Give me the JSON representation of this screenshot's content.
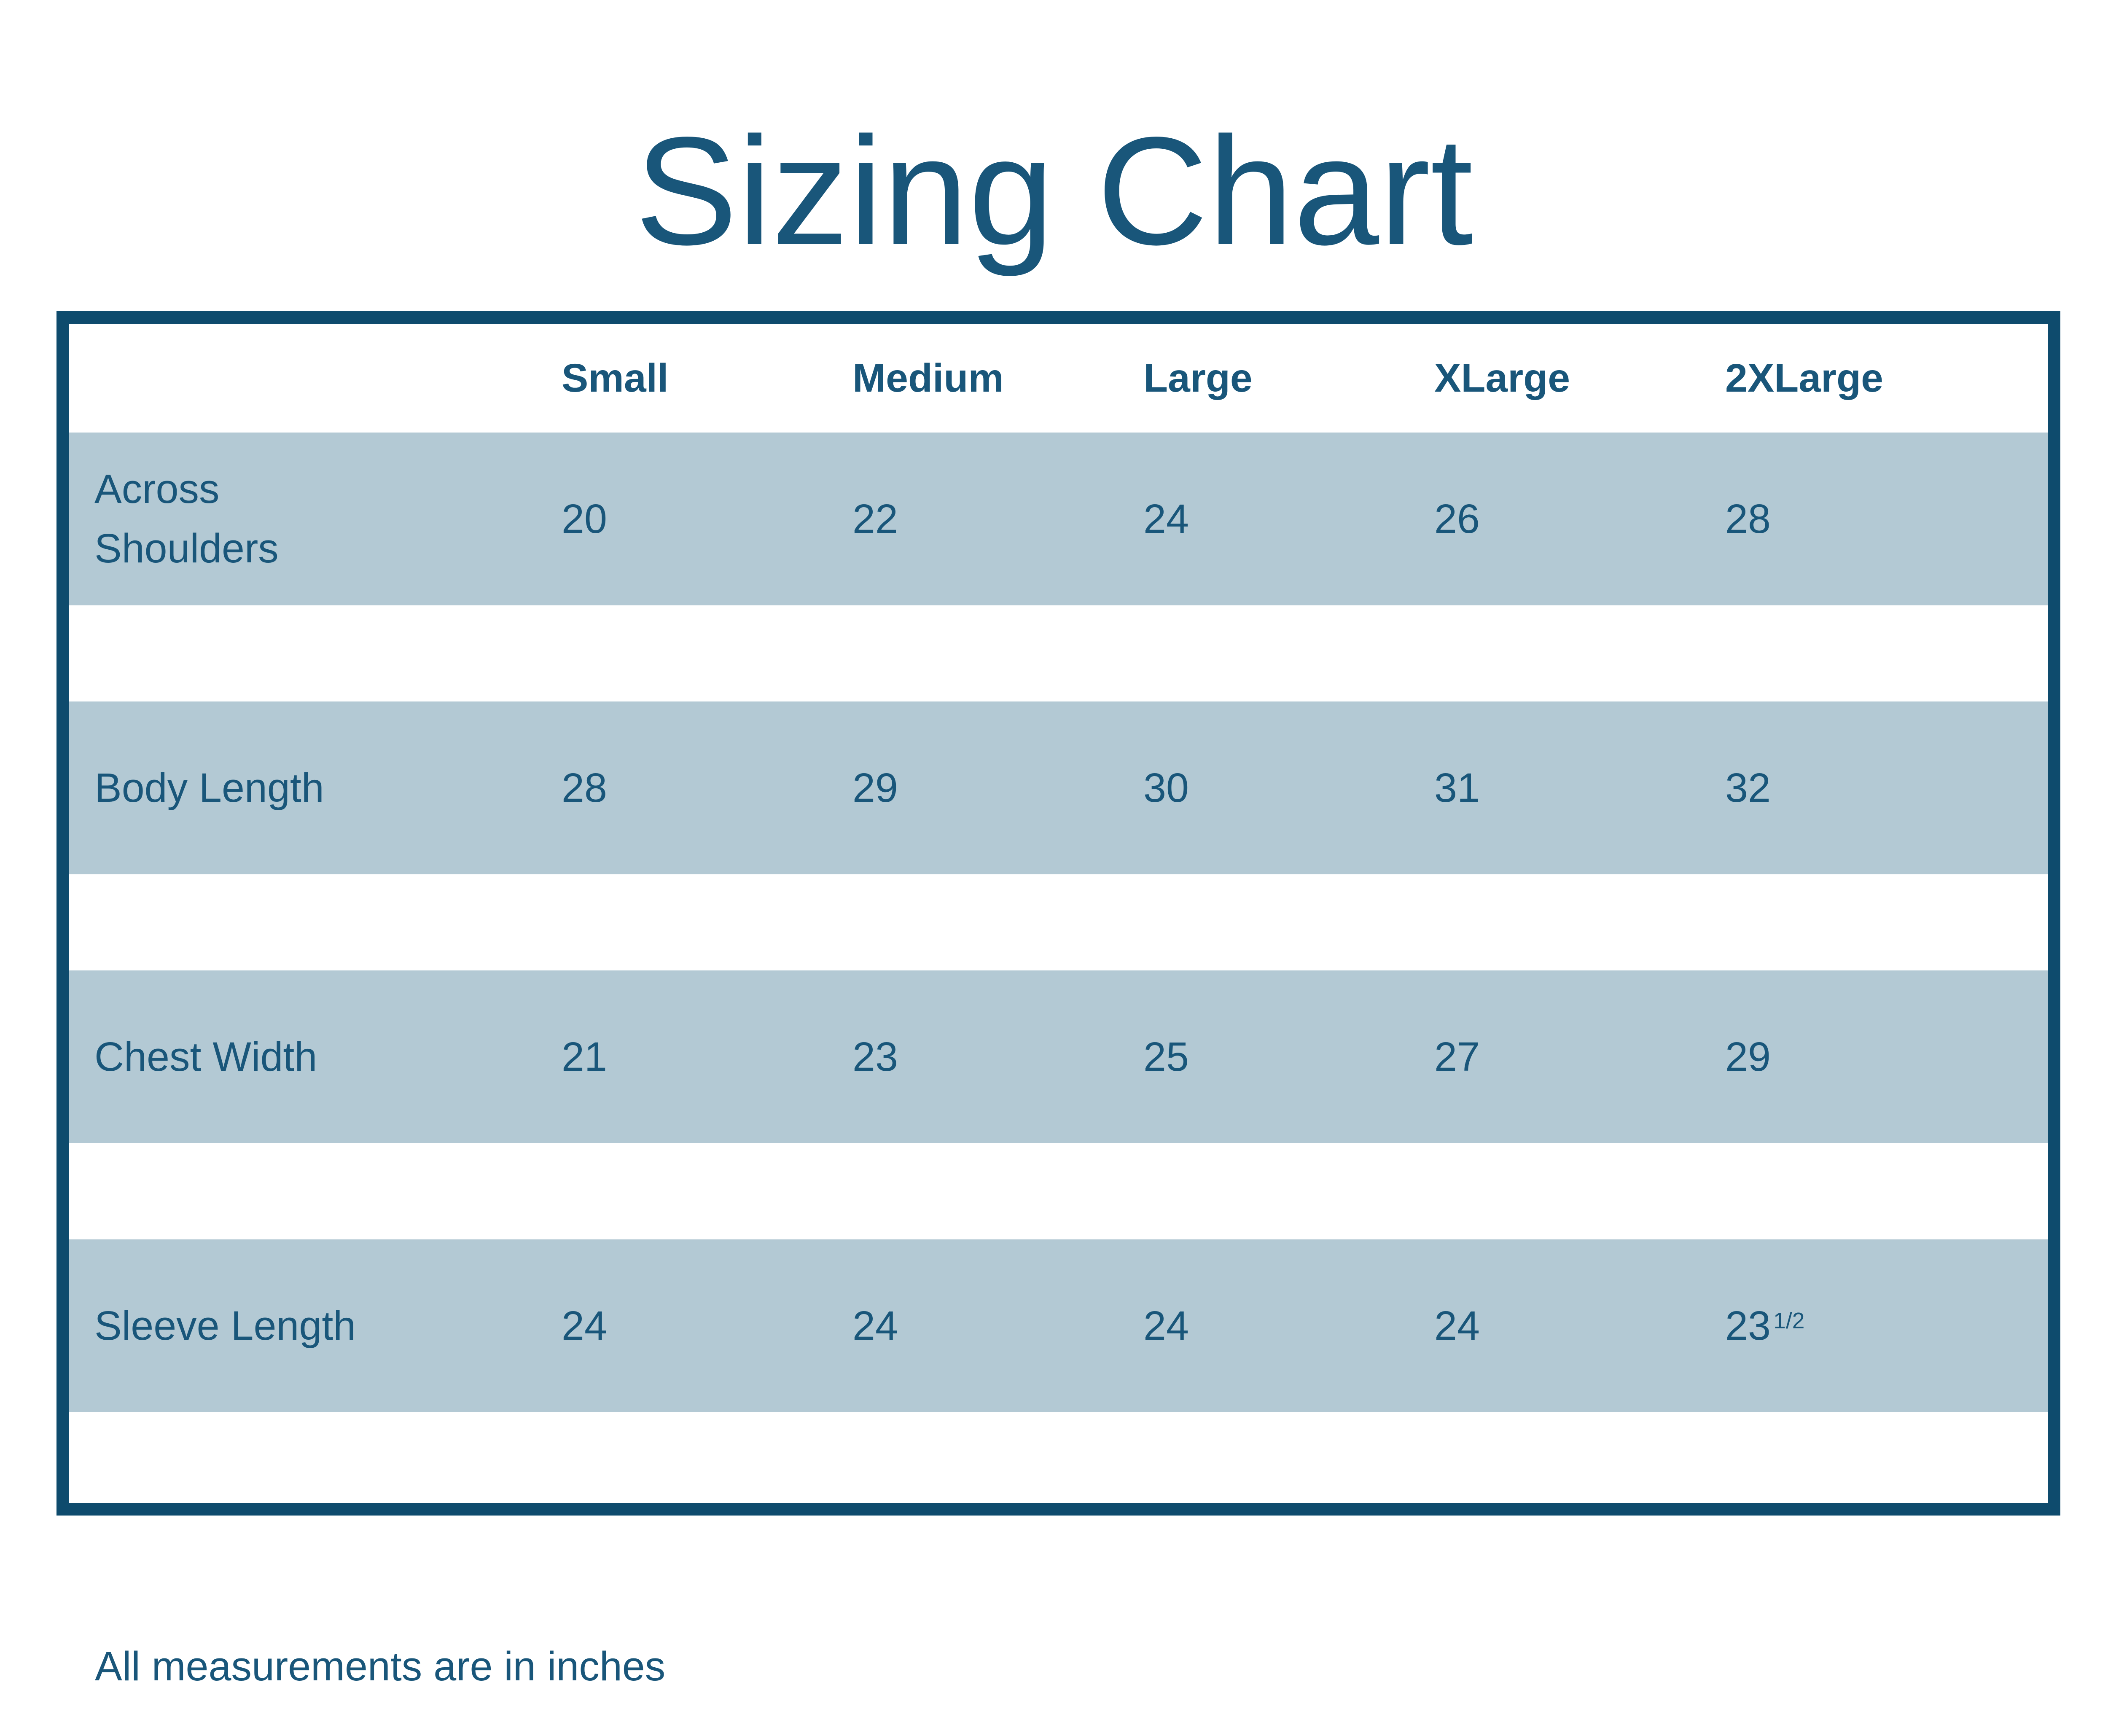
{
  "page": {
    "title": "Sizing Chart",
    "footnote": "All measurements are in inches"
  },
  "colors": {
    "ink": "#19567a",
    "border": "#0e4b6d",
    "stripe": "#b3c9d4",
    "background": "#ffffff"
  },
  "table": {
    "corner_label": "",
    "columns": [
      "Small",
      "Medium",
      "Large",
      "XLarge",
      "2XLarge"
    ],
    "rows": [
      {
        "label": "Across\nShoulders",
        "values": [
          "20",
          "22",
          "24",
          "26",
          "28"
        ]
      },
      {
        "label": "Body Length",
        "values": [
          "28",
          "29",
          "30",
          "31",
          "32"
        ]
      },
      {
        "label": "Chest Width",
        "values": [
          "21",
          "23",
          "25",
          "27",
          "29"
        ]
      },
      {
        "label": "Sleeve Length",
        "values": [
          "24",
          "24",
          "24",
          "24",
          "23 1/2"
        ]
      }
    ]
  },
  "chart_data": {
    "type": "table",
    "title": "Sizing Chart",
    "columns": [
      "Small",
      "Medium",
      "Large",
      "XLarge",
      "2XLarge"
    ],
    "rows": [
      {
        "measurement": "Across Shoulders",
        "values": [
          20,
          22,
          24,
          26,
          28
        ]
      },
      {
        "measurement": "Body Length",
        "values": [
          28,
          29,
          30,
          31,
          32
        ]
      },
      {
        "measurement": "Chest Width",
        "values": [
          21,
          23,
          25,
          27,
          29
        ]
      },
      {
        "measurement": "Sleeve Length",
        "values": [
          24,
          24,
          24,
          24,
          23.5
        ]
      }
    ],
    "units": "inches",
    "note": "All measurements are in inches"
  }
}
